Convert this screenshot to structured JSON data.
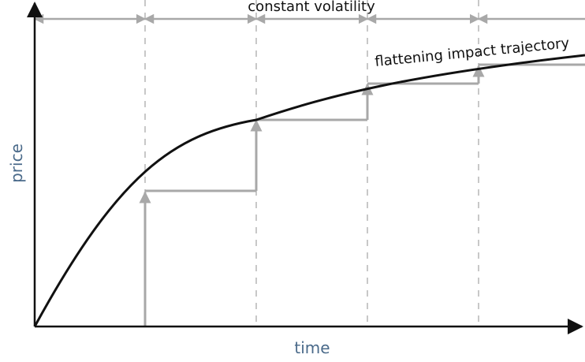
{
  "labels": {
    "y_axis": "price",
    "x_axis": "time",
    "top_annotation": "constant volatility",
    "curve_annotation": "flattening impact trajectory"
  },
  "colors": {
    "curve": "#111111",
    "steps": "#a8a8a8",
    "gridlines": "#c8c8c8",
    "axes": "#111111",
    "axis_label": "#4a6a8a"
  }
}
